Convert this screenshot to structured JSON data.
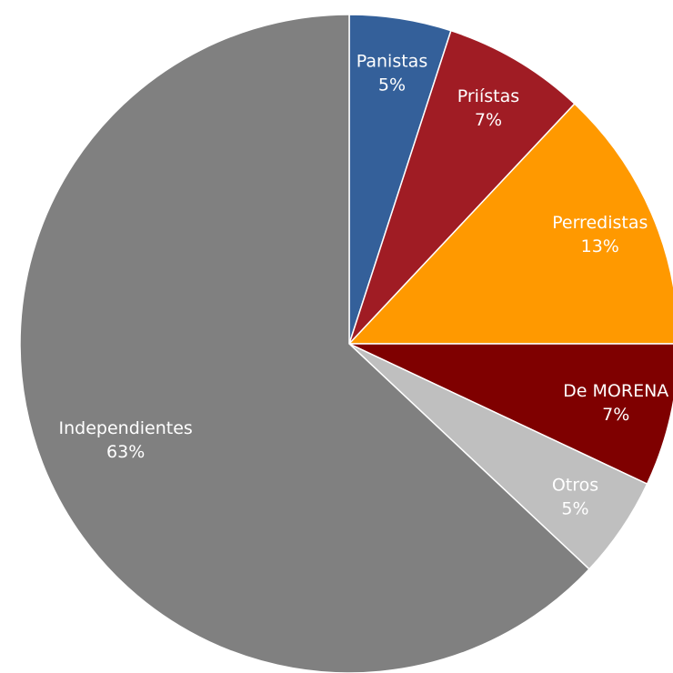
{
  "chart_data": {
    "type": "pie",
    "categories": [
      "Panistas",
      "Priístas",
      "Perredistas",
      "De MORENA",
      "Otros",
      "Independientes"
    ],
    "values": [
      5,
      7,
      13,
      7,
      5,
      63
    ],
    "value_labels": [
      "5%",
      "7%",
      "13%",
      "7%",
      "5%",
      "63%"
    ],
    "colors": [
      "#34609a",
      "#a01c24",
      "#ff9900",
      "#7f0000",
      "#bfbfbf",
      "#808080"
    ]
  }
}
